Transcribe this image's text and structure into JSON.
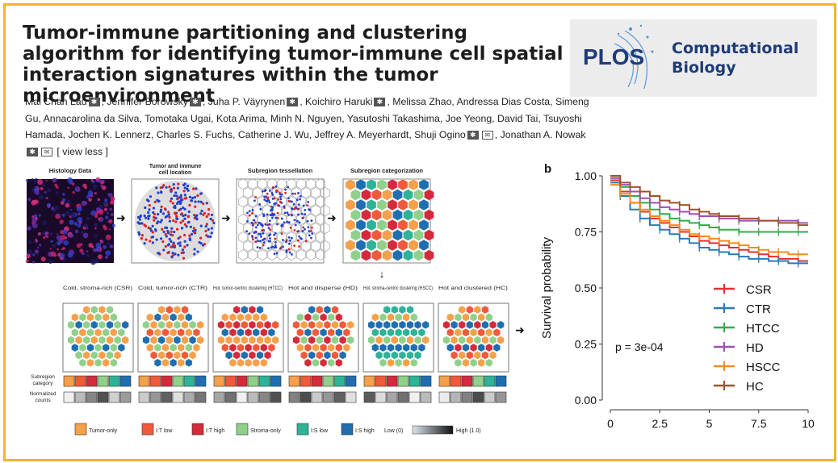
{
  "paper": {
    "title": "Tumor-immune partitioning and clustering algorithm for identifying tumor-immune cell spatial interaction signatures within the tumor microenvironment",
    "authors_line1": "Mai Chan Lau",
    "authors": [
      "Mai Chan Lau",
      "Jennifer Borowsky",
      "Juha P. Väyrynen",
      "Koichiro Haruki",
      "Melissa Zhao",
      "Andressa Dias Costa",
      "Simeng Gu",
      "Annacarolina da Silva",
      "Tomotaka Ugai",
      "Kota Arima",
      "Minh N. Nguyen",
      "Yasutoshi Takashima",
      "Joe Yeong",
      "David Tai",
      "Tsuyoshi Hamada",
      "Jochen K. Lennerz",
      "Charles S. Fuchs",
      "Catherine J. Wu",
      "Jeffrey A. Meyerhardt",
      "Shuji Ogino",
      "Jonathan A. Nowak"
    ],
    "view_less": "[ view less ]"
  },
  "journal": {
    "logo_text": "PLOS",
    "name_line1": "Computational",
    "name_line2": "Biology",
    "brand_color": "#1e3c78",
    "accent": "#4a90d9"
  },
  "figure": {
    "panel_label": "b",
    "pipeline": {
      "step1": "Histology Data",
      "step2": "Tumor and immune cell location",
      "step3": "Subregion tessellation",
      "step4": "Subregion categorization"
    },
    "categories": [
      {
        "name": "Cold, stroma-rich (CSR)"
      },
      {
        "name": "Cold, tumor-rich (CTR)"
      },
      {
        "name": "Hot, tumor-centric clustering (HTCC)"
      },
      {
        "name": "Hot and disperse (HD)"
      },
      {
        "name": "Hot, stroma-centric clustering (HSCC)"
      },
      {
        "name": "Hot and clustered (HC)"
      }
    ],
    "row_labels": {
      "subregion": "Subregion category",
      "normalized": "Normalized counts"
    },
    "legend": [
      {
        "label": "Tumor-only",
        "color": "#f5a04a"
      },
      {
        "label": "I:T low",
        "color": "#ef5a3a"
      },
      {
        "label": "I:T high",
        "color": "#d42a3c"
      },
      {
        "label": "Stroma-only",
        "color": "#8fd08a"
      },
      {
        "label": "I:S low",
        "color": "#2fb398"
      },
      {
        "label": "I:S high",
        "color": "#1f6fb0"
      }
    ],
    "gradient": {
      "low": "Low (0)",
      "high": "High (1.0)"
    }
  },
  "chart_data": {
    "type": "line",
    "title": "",
    "xlabel": "",
    "ylabel": "Survival probability",
    "xlim": [
      0,
      10
    ],
    "ylim": [
      0,
      1
    ],
    "xticks": [
      "0",
      "2.5",
      "5",
      "7.5",
      "10"
    ],
    "yticks": [
      "0.00",
      "0.25",
      "0.50",
      "0.75",
      "1.00"
    ],
    "annotation": "p = 3e-04",
    "legend_position": "right",
    "series": [
      {
        "name": "CSR",
        "color": "#e63030",
        "x": [
          0,
          0.5,
          1,
          1.5,
          2,
          2.5,
          3,
          3.5,
          4,
          4.5,
          5,
          5.5,
          6,
          6.5,
          7,
          7.5,
          8,
          8.5,
          9,
          9.5,
          10
        ],
        "y": [
          0.98,
          0.93,
          0.88,
          0.84,
          0.81,
          0.79,
          0.77,
          0.75,
          0.73,
          0.71,
          0.7,
          0.69,
          0.68,
          0.67,
          0.66,
          0.65,
          0.64,
          0.63,
          0.63,
          0.62,
          0.62
        ]
      },
      {
        "name": "CTR",
        "color": "#2a7ab8",
        "x": [
          0,
          0.5,
          1,
          1.5,
          2,
          2.5,
          3,
          3.5,
          4,
          4.5,
          5,
          5.5,
          6,
          6.5,
          7,
          7.5,
          8,
          8.5,
          9,
          9.5,
          10
        ],
        "y": [
          0.97,
          0.91,
          0.85,
          0.81,
          0.78,
          0.76,
          0.74,
          0.72,
          0.7,
          0.68,
          0.67,
          0.66,
          0.65,
          0.64,
          0.63,
          0.63,
          0.62,
          0.62,
          0.61,
          0.61,
          0.61
        ]
      },
      {
        "name": "HTCC",
        "color": "#2fae4a",
        "x": [
          0,
          0.5,
          1,
          1.5,
          2,
          2.5,
          3,
          3.5,
          4,
          4.5,
          5,
          5.5,
          6,
          6.5,
          7,
          7.5,
          8,
          8.5,
          9,
          9.5,
          10
        ],
        "y": [
          0.99,
          0.95,
          0.91,
          0.88,
          0.85,
          0.83,
          0.81,
          0.8,
          0.79,
          0.78,
          0.77,
          0.76,
          0.76,
          0.75,
          0.75,
          0.75,
          0.75,
          0.75,
          0.75,
          0.75,
          0.75
        ]
      },
      {
        "name": "HD",
        "color": "#9b50b8",
        "x": [
          0,
          0.5,
          1,
          1.5,
          2,
          2.5,
          3,
          3.5,
          4,
          4.5,
          5,
          5.5,
          6,
          6.5,
          7,
          7.5,
          8,
          8.5,
          9,
          9.5,
          10
        ],
        "y": [
          0.99,
          0.96,
          0.93,
          0.9,
          0.88,
          0.86,
          0.85,
          0.84,
          0.83,
          0.82,
          0.82,
          0.81,
          0.81,
          0.8,
          0.8,
          0.8,
          0.8,
          0.8,
          0.8,
          0.79,
          0.79
        ]
      },
      {
        "name": "HSCC",
        "color": "#f58a20",
        "x": [
          0,
          0.5,
          1,
          1.5,
          2,
          2.5,
          3,
          3.5,
          4,
          4.5,
          5,
          5.5,
          6,
          6.5,
          7,
          7.5,
          8,
          8.5,
          9,
          9.5,
          10
        ],
        "y": [
          0.96,
          0.92,
          0.88,
          0.85,
          0.82,
          0.8,
          0.78,
          0.76,
          0.74,
          0.73,
          0.72,
          0.71,
          0.7,
          0.69,
          0.68,
          0.67,
          0.66,
          0.66,
          0.65,
          0.65,
          0.65
        ]
      },
      {
        "name": "HC",
        "color": "#a0522d",
        "x": [
          0,
          0.5,
          1,
          1.5,
          2,
          2.5,
          3,
          3.5,
          4,
          4.5,
          5,
          5.5,
          6,
          6.5,
          7,
          7.5,
          8,
          8.5,
          9,
          9.5,
          10
        ],
        "y": [
          1.0,
          0.97,
          0.95,
          0.93,
          0.91,
          0.89,
          0.88,
          0.87,
          0.85,
          0.84,
          0.83,
          0.82,
          0.82,
          0.81,
          0.81,
          0.8,
          0.8,
          0.79,
          0.79,
          0.78,
          0.78
        ]
      }
    ]
  }
}
